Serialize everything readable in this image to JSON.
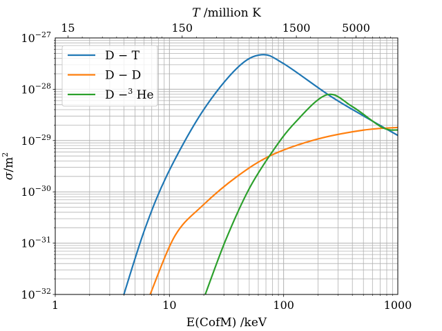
{
  "chart_data": {
    "type": "line",
    "title": "",
    "xlabel": "E(CofM) /keV",
    "ylabel": "σ /m²",
    "ylabel_parts": {
      "sym": "σ",
      "unit": "/m",
      "unit_exp": "2"
    },
    "top_xlabel": "T /million K",
    "top_xlabel_parts": {
      "sym": "T",
      "rest": " /million K"
    },
    "x_scale": "log",
    "y_scale": "log",
    "xlim": [
      1,
      1000
    ],
    "ylim": [
      1e-32,
      1e-27
    ],
    "grid": "major and minor",
    "legend_position": "top-left",
    "x_ticks": [
      {
        "value": 1,
        "label": "1"
      },
      {
        "value": 10,
        "label": "10"
      },
      {
        "value": 100,
        "label": "100"
      },
      {
        "value": 1000,
        "label": "1000"
      }
    ],
    "y_ticks": [
      {
        "value": 1e-32,
        "base": "10",
        "exp": "−32"
      },
      {
        "value": 1e-31,
        "base": "10",
        "exp": "−31"
      },
      {
        "value": 1e-30,
        "base": "10",
        "exp": "−30"
      },
      {
        "value": 1e-29,
        "base": "10",
        "exp": "−29"
      },
      {
        "value": 1e-28,
        "base": "10",
        "exp": "−28"
      },
      {
        "value": 1e-27,
        "base": "10",
        "exp": "−27"
      }
    ],
    "top_ticks": [
      {
        "value": 15,
        "label": "15"
      },
      {
        "value": 150,
        "label": "150"
      },
      {
        "value": 1500,
        "label": "1500"
      },
      {
        "value": 5000,
        "label": "5000"
      }
    ],
    "million_K_per_keV": 11.6045,
    "series": [
      {
        "name": "D − T",
        "legend": {
          "pre": "D − T",
          "sup": "",
          "post": ""
        },
        "color": "#1f77b4",
        "points": [
          [
            3.99,
            1e-32
          ],
          [
            6.1,
            1.9e-31
          ],
          [
            9.7,
            2.3e-30
          ],
          [
            19.5,
            3.7e-29
          ],
          [
            39.2,
            2.6e-28
          ],
          [
            63.8,
            4.7e-28
          ],
          [
            99,
            3.2e-28
          ],
          [
            251,
            7.6e-29
          ],
          [
            503,
            3e-29
          ],
          [
            1000,
            1.26e-29
          ]
        ]
      },
      {
        "name": "D − D",
        "legend": {
          "pre": "D − D",
          "sup": "",
          "post": ""
        },
        "color": "#ff7f0e",
        "points": [
          [
            6.78,
            1e-32
          ],
          [
            11.2,
            1.4e-31
          ],
          [
            19.5,
            5.4e-31
          ],
          [
            39.2,
            2e-30
          ],
          [
            78.6,
            5.2e-30
          ],
          [
            199,
            1.07e-29
          ],
          [
            503,
            1.6e-29
          ],
          [
            1000,
            1.8e-29
          ]
        ]
      },
      {
        "name": "D − 3He",
        "legend": {
          "pre": "D −",
          "sup": "3",
          "post": " He"
        },
        "color": "#2ca02c",
        "points": [
          [
            20.6,
            1e-32
          ],
          [
            31.1,
            1.15e-31
          ],
          [
            49.4,
            1.1e-30
          ],
          [
            78.6,
            5.8e-30
          ],
          [
            125,
            2.2e-29
          ],
          [
            239,
            7.8e-29
          ],
          [
            399,
            4.6e-29
          ],
          [
            730,
            1.8e-29
          ],
          [
            1000,
            1.6e-29
          ]
        ]
      }
    ]
  }
}
